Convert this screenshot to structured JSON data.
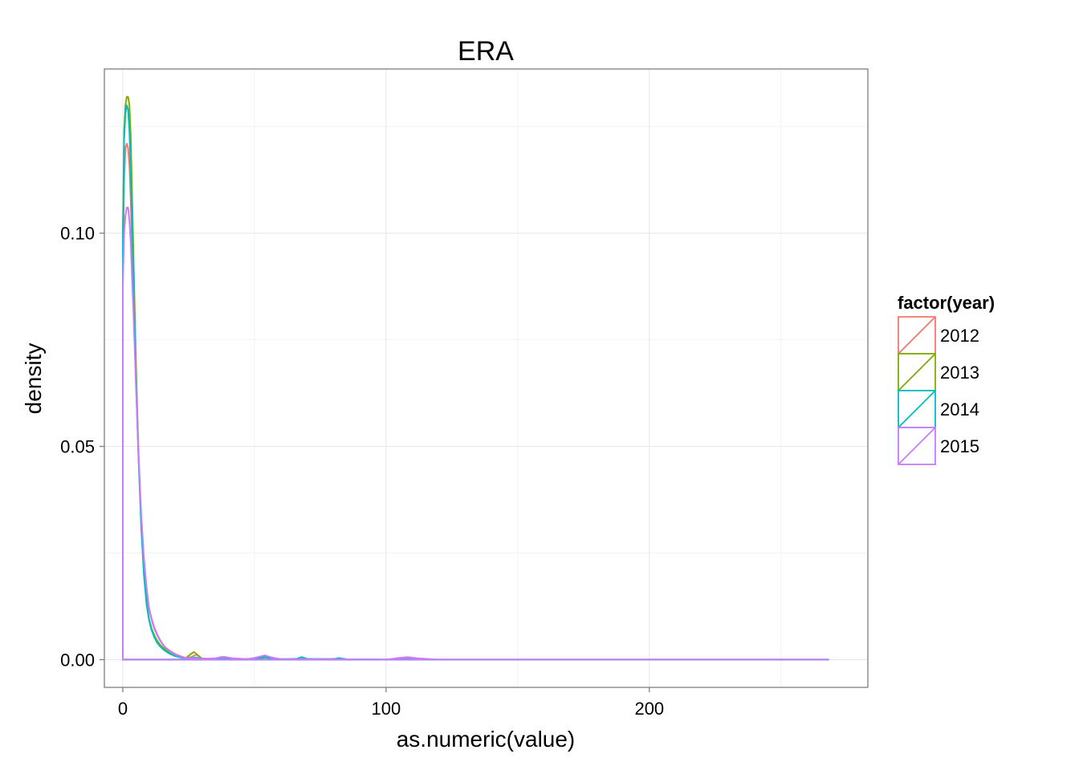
{
  "chart_data": {
    "type": "line",
    "title": "ERA",
    "xlabel": "as.numeric(value)",
    "ylabel": "density",
    "xlim": [
      -7,
      283
    ],
    "ylim": [
      -0.0065,
      0.1385
    ],
    "x_ticks": [
      {
        "value": 0,
        "label": "0"
      },
      {
        "value": 100,
        "label": "100"
      },
      {
        "value": 200,
        "label": "200"
      }
    ],
    "y_ticks": [
      {
        "value": 0.0,
        "label": "0.00"
      },
      {
        "value": 0.05,
        "label": "0.05"
      },
      {
        "value": 0.1,
        "label": "0.10"
      }
    ],
    "x_minor": [
      50,
      150,
      250
    ],
    "y_minor": [
      0.025,
      0.075,
      0.125
    ],
    "grid": true,
    "legend": {
      "title": "factor(year)",
      "position": "right"
    },
    "series": [
      {
        "name": "2012",
        "color": "#F8766D",
        "x": [
          0,
          0.5,
          1,
          1.5,
          2,
          2.5,
          3,
          3.5,
          4,
          5,
          6,
          7,
          8,
          9,
          10,
          11,
          12,
          13,
          14,
          15,
          16,
          17,
          18,
          20,
          22,
          24,
          26,
          28,
          30,
          35,
          38,
          42,
          48,
          52,
          54,
          56,
          60,
          65,
          68,
          72,
          80,
          85,
          100,
          105,
          108,
          112,
          120,
          150,
          200,
          250,
          268
        ],
        "y": [
          0.09,
          0.112,
          0.12,
          0.121,
          0.12,
          0.116,
          0.108,
          0.098,
          0.087,
          0.065,
          0.047,
          0.032,
          0.022,
          0.016,
          0.012,
          0.0095,
          0.0075,
          0.006,
          0.0048,
          0.0038,
          0.003,
          0.0025,
          0.002,
          0.0013,
          0.0008,
          0.0004,
          0.0006,
          0.0012,
          0.0003,
          0.0001,
          0.0003,
          0.0001,
          0.0002,
          0.0006,
          0.0008,
          0.0005,
          0.0001,
          0.0001,
          0.0002,
          0.0,
          0.0002,
          0.0,
          0.0,
          0.0003,
          0.0005,
          0.0002,
          0.0,
          0.0,
          0.0,
          0.0,
          0.0
        ]
      },
      {
        "name": "2013",
        "color": "#7CAE00",
        "x": [
          0,
          0.5,
          1,
          1.5,
          2,
          2.5,
          3,
          3.5,
          4,
          5,
          6,
          7,
          8,
          9,
          10,
          11,
          12,
          13,
          14,
          15,
          16,
          17,
          18,
          20,
          22,
          24,
          26,
          27,
          28,
          30,
          35,
          38,
          42,
          48,
          52,
          54,
          56,
          60,
          68,
          80,
          100,
          108,
          120,
          150,
          200,
          250,
          268
        ],
        "y": [
          0.1,
          0.124,
          0.13,
          0.132,
          0.132,
          0.13,
          0.123,
          0.11,
          0.096,
          0.069,
          0.048,
          0.032,
          0.021,
          0.014,
          0.0095,
          0.0072,
          0.0057,
          0.0045,
          0.0036,
          0.003,
          0.0025,
          0.002,
          0.0016,
          0.001,
          0.0006,
          0.0004,
          0.0014,
          0.0018,
          0.0013,
          0.0002,
          0.0001,
          0.0002,
          0.0001,
          0.0001,
          0.0004,
          0.0006,
          0.0004,
          0.0001,
          0.0001,
          0.0001,
          0.0,
          0.0001,
          0.0,
          0.0,
          0.0,
          0.0,
          0.0
        ]
      },
      {
        "name": "2014",
        "color": "#00BFC4",
        "x": [
          0,
          0.5,
          1,
          1.5,
          2,
          2.5,
          3,
          3.5,
          4,
          5,
          6,
          7,
          8,
          9,
          10,
          11,
          12,
          13,
          14,
          15,
          16,
          17,
          18,
          20,
          22,
          24,
          26,
          28,
          30,
          35,
          38,
          42,
          48,
          52,
          54,
          56,
          60,
          66,
          68,
          70,
          80,
          82,
          85,
          100,
          108,
          120,
          150,
          200,
          250,
          268
        ],
        "y": [
          0.098,
          0.122,
          0.128,
          0.13,
          0.129,
          0.124,
          0.115,
          0.102,
          0.09,
          0.066,
          0.047,
          0.031,
          0.02,
          0.013,
          0.0092,
          0.0068,
          0.0052,
          0.004,
          0.0032,
          0.0026,
          0.0021,
          0.0017,
          0.0013,
          0.0008,
          0.0005,
          0.0003,
          0.0004,
          0.0005,
          0.0002,
          0.0001,
          0.0002,
          0.0001,
          0.0001,
          0.0003,
          0.0005,
          0.0003,
          0.0001,
          0.0002,
          0.0006,
          0.0002,
          0.0001,
          0.0004,
          0.0001,
          0.0,
          0.0001,
          0.0,
          0.0,
          0.0,
          0.0,
          0.0
        ]
      },
      {
        "name": "2015",
        "color": "#C77CFF",
        "x": [
          0,
          0.5,
          1,
          1.5,
          2,
          2.5,
          3,
          3.5,
          4,
          5,
          6,
          7,
          8,
          9,
          10,
          11,
          12,
          13,
          14,
          15,
          16,
          17,
          18,
          20,
          22,
          24,
          26,
          28,
          30,
          35,
          38,
          42,
          48,
          52,
          54,
          56,
          60,
          68,
          80,
          100,
          105,
          108,
          112,
          120,
          150,
          200,
          250,
          268
        ],
        "y": [
          0.088,
          0.1,
          0.104,
          0.106,
          0.106,
          0.103,
          0.098,
          0.09,
          0.082,
          0.064,
          0.048,
          0.034,
          0.024,
          0.017,
          0.012,
          0.0092,
          0.0072,
          0.0058,
          0.0046,
          0.0037,
          0.003,
          0.0024,
          0.0019,
          0.0012,
          0.0007,
          0.0004,
          0.0003,
          0.0003,
          0.0002,
          0.0003,
          0.0007,
          0.0003,
          0.0001,
          0.0007,
          0.001,
          0.0006,
          0.0001,
          0.0001,
          0.0001,
          0.0,
          0.0004,
          0.0006,
          0.0003,
          0.0,
          0.0,
          0.0,
          0.0,
          0.0
        ]
      }
    ]
  }
}
